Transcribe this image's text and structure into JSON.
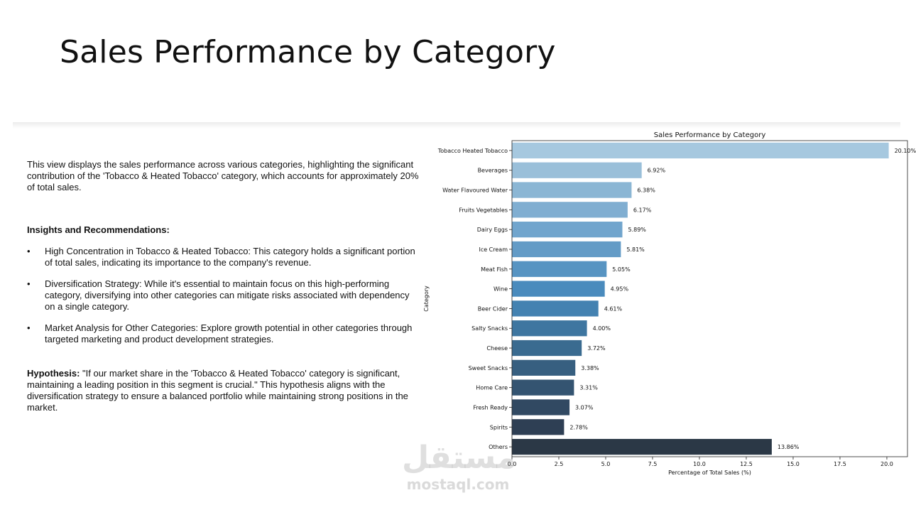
{
  "slide": {
    "title": "Sales Performance by Category"
  },
  "text": {
    "intro": "This view displays the sales performance across various categories, highlighting the significant contribution of the 'Tobacco & Heated Tobacco' category, which accounts for approximately 20% of total sales.",
    "insights_heading": "Insights and Recommendations:",
    "bullet_glyph": "•",
    "bullets": [
      "High Concentration in Tobacco & Heated Tobacco: This category holds a significant portion of total sales, indicating its importance to the company's revenue.",
      "Diversification Strategy: While it's essential to maintain focus on this high-performing category, diversifying into other categories can mitigate risks associated with dependency on a single category.",
      "Market Analysis for Other Categories: Explore growth potential in other categories through targeted marketing and product development strategies."
    ],
    "hypothesis_label": "Hypothesis:",
    "hypothesis_body": " \"If our market share in the 'Tobacco & Heated Tobacco' category is significant, maintaining a leading position in this segment is crucial.\" This hypothesis aligns with the diversification strategy to ensure a balanced portfolio while maintaining strong positions in the market."
  },
  "watermark": {
    "arabic": "مستقل",
    "latin": "mostaql.com"
  },
  "chart_data": {
    "type": "bar",
    "orientation": "horizontal",
    "title": "Sales Performance by Category",
    "xlabel": "Percentage of Total Sales (%)",
    "ylabel": "Category",
    "xlim": [
      0,
      21.1
    ],
    "xticks": [
      0,
      2.5,
      5,
      7.5,
      10,
      12.5,
      15,
      17.5,
      20
    ],
    "xtick_labels": [
      "0.0",
      "2.5",
      "5.0",
      "7.5",
      "10.0",
      "12.5",
      "15.0",
      "17.5",
      "20.0"
    ],
    "grid": false,
    "legend": "none",
    "colormap": "Blues_d",
    "categories": [
      "Tobacco  Heated Tobacco",
      "Beverages",
      "Water  Flavoured Water",
      "Fruits  Vegetables",
      "Dairy  Eggs",
      "Ice Cream",
      "Meat  Fish",
      "Wine",
      "Beer  Cider",
      "Salty Snacks",
      "Cheese",
      "Sweet Snacks",
      "Home Care",
      "Fresh  Ready",
      "Spirits",
      "Others"
    ],
    "values": [
      20.1,
      6.92,
      6.38,
      6.17,
      5.89,
      5.81,
      5.05,
      4.95,
      4.61,
      4.0,
      3.72,
      3.38,
      3.31,
      3.07,
      2.78,
      13.86
    ],
    "value_labels": [
      "20.10%",
      "6.92%",
      "6.38%",
      "6.17%",
      "5.89%",
      "5.81%",
      "5.05%",
      "4.95%",
      "4.61%",
      "4.00%",
      "3.72%",
      "3.38%",
      "3.31%",
      "3.07%",
      "2.78%",
      "13.86%"
    ],
    "colors": [
      "#a6c8df",
      "#9abfd9",
      "#8bb6d4",
      "#80aed1",
      "#71a5cd",
      "#639bc6",
      "#5794c2",
      "#4a8bbd",
      "#4482b1",
      "#3e76a0",
      "#3a6b90",
      "#375f80",
      "#345471",
      "#314962",
      "#2e3f54",
      "#2b3846"
    ]
  }
}
